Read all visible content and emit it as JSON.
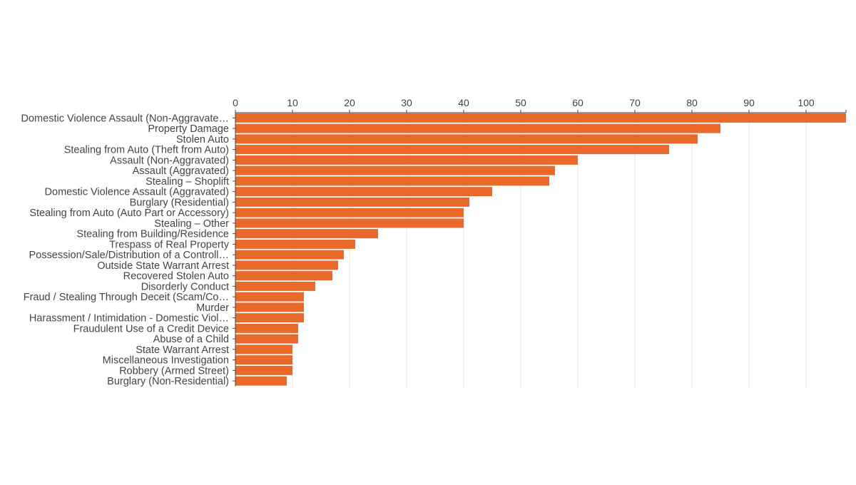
{
  "colors": {
    "bar": "#e8692a",
    "grid": "#e6e6e6",
    "axis": "#444444",
    "text": "#444444"
  },
  "chart_data": {
    "type": "bar",
    "orientation": "horizontal",
    "x_axis_position": "top",
    "grid": true,
    "xlim": [
      0,
      107
    ],
    "xticks": [
      0,
      10,
      20,
      30,
      40,
      50,
      60,
      70,
      80,
      90,
      100
    ],
    "title": "",
    "xlabel": "",
    "ylabel": "",
    "categories": [
      "Domestic Violence Assault (Non-Aggravate…",
      "Property Damage",
      "Stolen Auto",
      "Stealing from Auto (Theft from Auto)",
      "Assault (Non-Aggravated)",
      "Assault (Aggravated)",
      "Stealing – Shoplift",
      "Domestic Violence Assault (Aggravated)",
      "Burglary (Residential)",
      "Stealing from Auto (Auto Part or Accessory)",
      "Stealing – Other",
      "Stealing from Building/Residence",
      "Trespass of Real Property",
      "Possession/Sale/Distribution of a Controll…",
      "Outside State Warrant Arrest",
      "Recovered Stolen Auto",
      "Disorderly Conduct",
      "Fraud / Stealing Through Deceit (Scam/Co…",
      "Murder",
      "Harassment / Intimidation - Domestic Viol…",
      "Fraudulent Use of a Credit Device",
      "Abuse of a Child",
      "State Warrant Arrest",
      "Miscellaneous Investigation",
      "Robbery (Armed Street)",
      "Burglary (Non-Residential)"
    ],
    "values": [
      107,
      85,
      81,
      76,
      60,
      56,
      55,
      45,
      41,
      40,
      40,
      25,
      21,
      19,
      18,
      17,
      14,
      12,
      12,
      12,
      11,
      11,
      10,
      10,
      10,
      9
    ]
  }
}
